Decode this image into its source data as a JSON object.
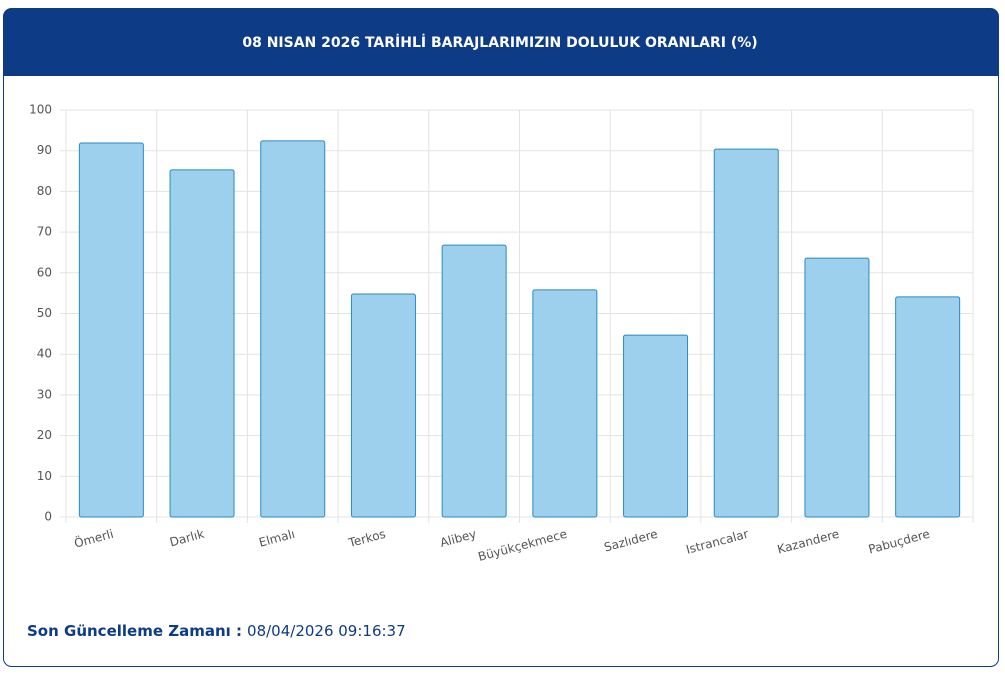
{
  "chart_data": {
    "type": "bar",
    "title": "08 NISAN 2026 TARİHLİ BARAJLARIMIZIN DOLULUK ORANLARI (%)",
    "categories": [
      "Ömerli",
      "Darlık",
      "Elmalı",
      "Terkos",
      "Alibey",
      "Büyükçekmece",
      "Sazlıdere",
      "Istrancalar",
      "Kazandere",
      "Pabuçdere"
    ],
    "values": [
      91.9,
      85.3,
      92.4,
      54.8,
      66.8,
      55.8,
      44.7,
      90.4,
      63.6,
      54.1
    ],
    "color": "#9dd0ec",
    "ylim": [
      0,
      100
    ],
    "yticks": [
      0,
      10,
      20,
      30,
      40,
      50,
      60,
      70,
      80,
      90,
      100
    ],
    "grid": true
  },
  "footer": {
    "label": "Son Güncelleme Zamanı :",
    "value": "08/04/2026 09:16:37"
  }
}
